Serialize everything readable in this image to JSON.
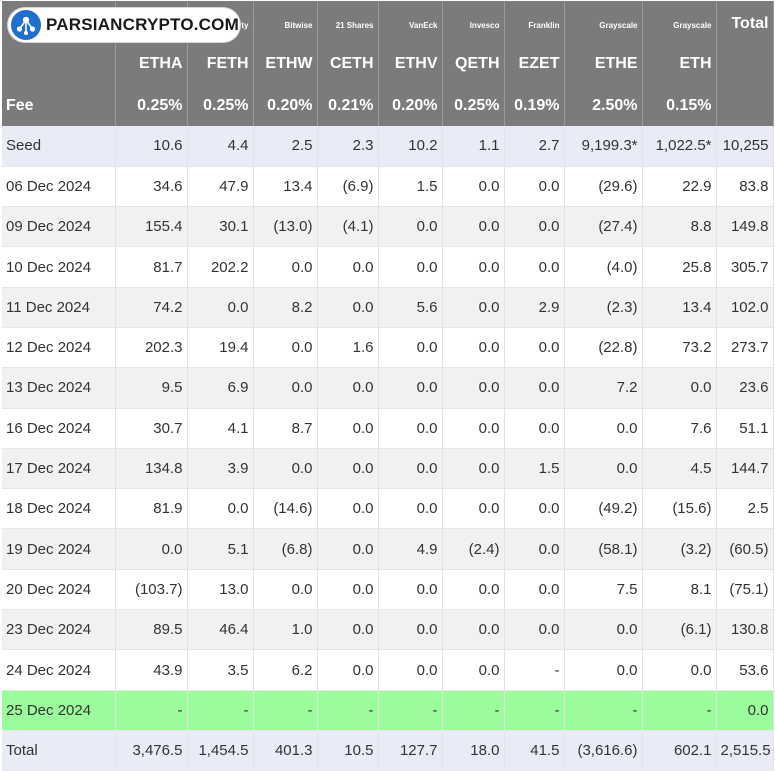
{
  "logo": {
    "text": "PARSIANCRYPTO.COM",
    "icon": "network-nodes-icon"
  },
  "header": {
    "issuers": [
      "",
      "",
      "ty",
      "Bitwise",
      "21 Shares",
      "VanEck",
      "Invesco",
      "Franklin",
      "Grayscale",
      "Grayscale",
      "Total"
    ],
    "tickers": [
      "",
      "ETHA",
      "FETH",
      "ETHW",
      "CETH",
      "ETHV",
      "QETH",
      "EZET",
      "ETHE",
      "ETH",
      ""
    ],
    "fee_label": "Fee",
    "fees": [
      "0.25%",
      "0.25%",
      "0.20%",
      "0.21%",
      "0.20%",
      "0.25%",
      "0.19%",
      "2.50%",
      "0.15%",
      ""
    ]
  },
  "rows": [
    {
      "label": "Seed",
      "kind": "seed",
      "cells": [
        "10.6",
        "4.4",
        "2.5",
        "2.3",
        "10.2",
        "1.1",
        "2.7",
        "9,199.3*",
        "1,022.5*",
        "10,255"
      ]
    },
    {
      "label": "06 Dec 2024",
      "kind": "even",
      "cells": [
        "34.6",
        "47.9",
        "13.4",
        "(6.9)",
        "1.5",
        "0.0",
        "0.0",
        "(29.6)",
        "22.9",
        "83.8"
      ]
    },
    {
      "label": "09 Dec 2024",
      "kind": "odd",
      "cells": [
        "155.4",
        "30.1",
        "(13.0)",
        "(4.1)",
        "0.0",
        "0.0",
        "0.0",
        "(27.4)",
        "8.8",
        "149.8"
      ]
    },
    {
      "label": "10 Dec 2024",
      "kind": "even",
      "cells": [
        "81.7",
        "202.2",
        "0.0",
        "0.0",
        "0.0",
        "0.0",
        "0.0",
        "(4.0)",
        "25.8",
        "305.7"
      ]
    },
    {
      "label": "11 Dec 2024",
      "kind": "odd",
      "cells": [
        "74.2",
        "0.0",
        "8.2",
        "0.0",
        "5.6",
        "0.0",
        "2.9",
        "(2.3)",
        "13.4",
        "102.0"
      ]
    },
    {
      "label": "12 Dec 2024",
      "kind": "even",
      "cells": [
        "202.3",
        "19.4",
        "0.0",
        "1.6",
        "0.0",
        "0.0",
        "0.0",
        "(22.8)",
        "73.2",
        "273.7"
      ]
    },
    {
      "label": "13 Dec 2024",
      "kind": "odd",
      "cells": [
        "9.5",
        "6.9",
        "0.0",
        "0.0",
        "0.0",
        "0.0",
        "0.0",
        "7.2",
        "0.0",
        "23.6"
      ]
    },
    {
      "label": "16 Dec 2024",
      "kind": "even",
      "cells": [
        "30.7",
        "4.1",
        "8.7",
        "0.0",
        "0.0",
        "0.0",
        "0.0",
        "0.0",
        "7.6",
        "51.1"
      ]
    },
    {
      "label": "17 Dec 2024",
      "kind": "odd",
      "cells": [
        "134.8",
        "3.9",
        "0.0",
        "0.0",
        "0.0",
        "0.0",
        "1.5",
        "0.0",
        "4.5",
        "144.7"
      ]
    },
    {
      "label": "18 Dec 2024",
      "kind": "even",
      "cells": [
        "81.9",
        "0.0",
        "(14.6)",
        "0.0",
        "0.0",
        "0.0",
        "0.0",
        "(49.2)",
        "(15.6)",
        "2.5"
      ]
    },
    {
      "label": "19 Dec 2024",
      "kind": "odd",
      "cells": [
        "0.0",
        "5.1",
        "(6.8)",
        "0.0",
        "4.9",
        "(2.4)",
        "0.0",
        "(58.1)",
        "(3.2)",
        "(60.5)"
      ]
    },
    {
      "label": "20 Dec 2024",
      "kind": "even",
      "cells": [
        "(103.7)",
        "13.0",
        "0.0",
        "0.0",
        "0.0",
        "0.0",
        "0.0",
        "7.5",
        "8.1",
        "(75.1)"
      ]
    },
    {
      "label": "23 Dec 2024",
      "kind": "odd",
      "cells": [
        "89.5",
        "46.4",
        "1.0",
        "0.0",
        "0.0",
        "0.0",
        "0.0",
        "0.0",
        "(6.1)",
        "130.8"
      ]
    },
    {
      "label": "24 Dec 2024",
      "kind": "even",
      "cells": [
        "43.9",
        "3.5",
        "6.2",
        "0.0",
        "0.0",
        "0.0",
        "-",
        "0.0",
        "0.0",
        "53.6"
      ]
    },
    {
      "label": "25 Dec 2024",
      "kind": "hl",
      "cells": [
        "-",
        "-",
        "-",
        "-",
        "-",
        "-",
        "-",
        "-",
        "-",
        "0.0"
      ]
    },
    {
      "label": "Total",
      "kind": "total",
      "cells": [
        "3,476.5",
        "1,454.5",
        "401.3",
        "10.5",
        "127.7",
        "18.0",
        "41.5",
        "(3,616.6)",
        "602.1",
        "2,515.5"
      ]
    }
  ],
  "colors": {
    "header_bg": "#7b7b7b",
    "negative": "#e0211e",
    "highlight_row": "#9afc9a",
    "seed_total_bg": "#e9ecf6"
  }
}
